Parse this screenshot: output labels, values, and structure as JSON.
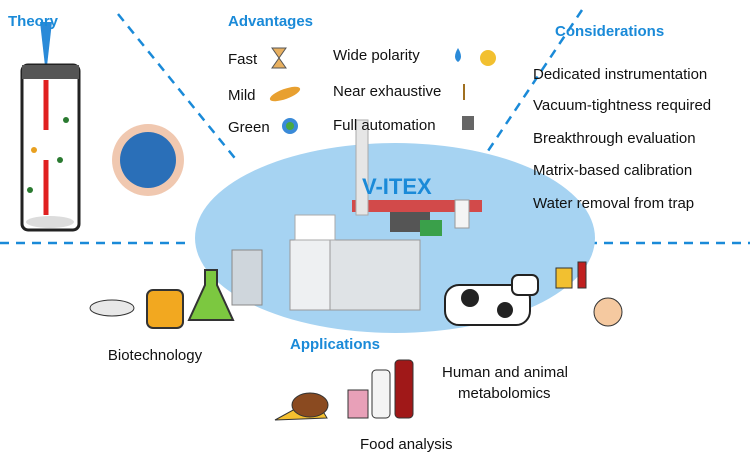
{
  "theory": {
    "title": "Theory"
  },
  "advantages": {
    "title": "Advantages",
    "items": [
      "Fast",
      "Mild",
      "Green",
      "Wide polarity",
      "Near exhaustive",
      "Full automation"
    ]
  },
  "considerations": {
    "title": "Considerations",
    "items": [
      "Dedicated instrumentation",
      "Vacuum-tightness required",
      "Breakthrough evaluation",
      "Matrix-based calibration",
      "Water removal from trap"
    ]
  },
  "center": {
    "label": "V-ITEX"
  },
  "applications": {
    "title": "Applications",
    "items": [
      {
        "lines": [
          "Biotechnology"
        ]
      },
      {
        "lines": [
          "Human and animal",
          "metabolomics"
        ]
      },
      {
        "lines": [
          "Food analysis"
        ]
      }
    ]
  }
}
